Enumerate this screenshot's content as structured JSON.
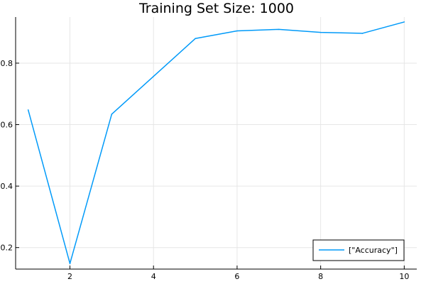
{
  "chart_data": {
    "type": "line",
    "title": "Training Set Size: 1000",
    "xlabel": "",
    "ylabel": "",
    "xlim": [
      0.7,
      10.3
    ],
    "ylim": [
      0.13,
      0.95
    ],
    "x_ticks": [
      2,
      4,
      6,
      8,
      10
    ],
    "x_tick_labels": [
      "2",
      "4",
      "6",
      "8",
      "10"
    ],
    "y_ticks": [
      0.2,
      0.4,
      0.6,
      0.8
    ],
    "y_tick_labels": [
      "0.2",
      "0.4",
      "0.6",
      "0.8"
    ],
    "grid": true,
    "legend_position": "bottom-right",
    "series": [
      {
        "name": "[\"Accuracy\"]",
        "color": "#009af9",
        "x": [
          1,
          2,
          3,
          4,
          5,
          6,
          7,
          8,
          9,
          10
        ],
        "y": [
          0.648,
          0.148,
          0.634,
          0.757,
          0.88,
          0.905,
          0.91,
          0.9,
          0.897,
          0.934
        ]
      }
    ]
  }
}
